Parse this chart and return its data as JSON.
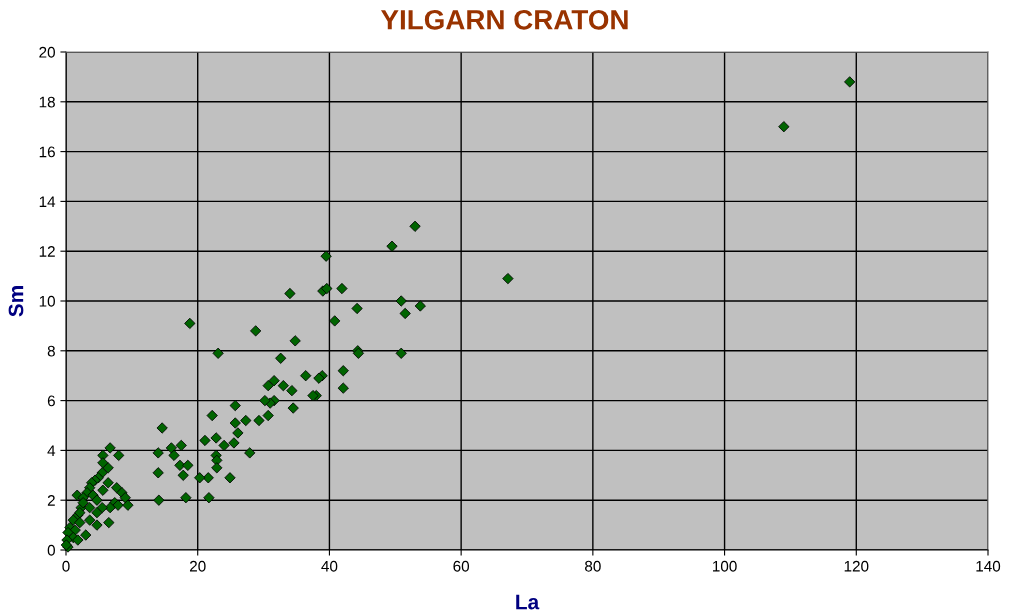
{
  "chart_data": {
    "type": "scatter",
    "title": "YILGARN CRATON",
    "xlabel": "La",
    "ylabel": "Sm",
    "x": [
      119.0,
      109.0,
      67.1,
      53.0,
      49.5,
      53.8,
      51.5,
      50.9,
      50.9,
      44.2,
      44.3,
      44.4,
      41.9,
      42.1,
      42.1,
      40.8,
      39.5,
      39.0,
      39.6,
      34.0,
      34.8,
      38.9,
      38.4,
      38.0,
      37.5,
      36.4,
      32.6,
      33.0,
      34.3,
      30.7,
      31.6,
      31.6,
      31.0,
      30.2,
      30.7,
      34.5,
      29.3,
      28.8,
      27.3,
      25.7,
      25.7,
      26.1,
      25.5,
      27.9,
      24.9,
      18.8,
      23.1,
      22.2,
      21.1,
      22.8,
      24.0,
      22.8,
      22.9,
      22.9,
      21.6,
      20.3,
      21.7,
      14.6,
      14.0,
      14.0,
      14.1,
      16.0,
      16.4,
      17.5,
      17.3,
      18.5,
      17.8,
      18.2,
      6.7,
      5.6,
      8.0,
      5.6,
      6.4,
      5.5,
      4.9,
      4.4,
      3.9,
      6.4,
      7.7,
      3.6,
      3.2,
      1.7,
      8.5,
      9.0,
      2.6,
      4.1,
      4.7,
      7.4,
      7.9,
      9.4,
      6.7,
      5.5,
      2.3,
      3.6,
      4.7,
      1.8,
      3.6,
      6.5,
      4.7,
      1.1,
      2.1,
      0.6,
      3.0,
      1.4,
      0.3,
      1.1,
      0.15,
      1.8,
      0.3,
      0.05,
      2.6,
      5.6,
      2.1
    ],
    "series": [
      {
        "color": "#006400",
        "values": [
          18.8,
          17.0,
          10.9,
          13.0,
          12.2,
          9.8,
          9.5,
          10.0,
          7.9,
          9.7,
          8.0,
          7.9,
          10.5,
          7.2,
          6.5,
          9.2,
          11.8,
          10.4,
          10.5,
          10.3,
          8.4,
          7.0,
          6.9,
          6.2,
          6.2,
          7.0,
          7.7,
          6.6,
          6.4,
          6.6,
          6.8,
          6.0,
          5.9,
          6.0,
          5.4,
          5.7,
          5.2,
          8.8,
          5.2,
          5.8,
          5.1,
          4.7,
          4.3,
          3.9,
          2.9,
          9.1,
          7.9,
          5.4,
          4.4,
          4.5,
          4.2,
          3.8,
          3.6,
          3.3,
          2.9,
          2.9,
          2.1,
          4.9,
          3.9,
          3.1,
          2.0,
          4.1,
          3.8,
          4.2,
          3.4,
          3.4,
          3.0,
          2.1,
          4.1,
          3.8,
          3.8,
          3.5,
          3.3,
          3.1,
          2.9,
          2.8,
          2.7,
          2.7,
          2.5,
          2.5,
          2.3,
          2.2,
          2.3,
          2.1,
          2.1,
          2.2,
          2.0,
          1.9,
          1.8,
          1.8,
          1.7,
          1.7,
          1.7,
          1.7,
          1.5,
          1.4,
          1.2,
          1.1,
          1.0,
          1.2,
          1.1,
          0.9,
          0.6,
          0.8,
          0.7,
          0.5,
          0.4,
          0.4,
          0.12,
          0.2,
          1.9,
          2.4,
          1.5
        ]
      }
    ],
    "xlim": [
      0,
      140
    ],
    "xticks": [
      0,
      20,
      40,
      60,
      80,
      100,
      120,
      140
    ],
    "ylim": [
      0,
      20
    ],
    "yticks": [
      0,
      2,
      4,
      6,
      8,
      10,
      12,
      14,
      16,
      18,
      20
    ],
    "grid": true,
    "marker": "diamond"
  }
}
